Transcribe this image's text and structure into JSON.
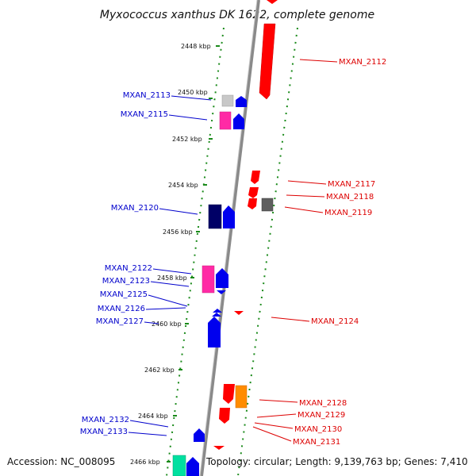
{
  "title": "Myxococcus xanthus DK 1622, complete genome",
  "footer": {
    "accession": "Accession: NC_008095",
    "info": "Topology: circular; Length: 9,139,763 bp; Genes: 7,410"
  },
  "kbp_marks": [
    "2448 kbp",
    "2450 kbp",
    "2452 kbp",
    "2454 kbp",
    "2456 kbp",
    "2458 kbp",
    "2460 kbp",
    "2462 kbp",
    "2464 kbp",
    "2466 kbp"
  ],
  "plus_strand_color": "#ff0000",
  "minus_strand_color": "#0000ee",
  "left_genes": [
    "MXAN_2113",
    "MXAN_2115",
    "MXAN_2120",
    "MXAN_2122",
    "MXAN_2123",
    "MXAN_2125",
    "MXAN_2126",
    "MXAN_2127",
    "MXAN_2132",
    "MXAN_2133"
  ],
  "right_genes": [
    "MXAN_2112",
    "MXAN_2117",
    "MXAN_2118",
    "MXAN_2119",
    "MXAN_2124",
    "MXAN_2128",
    "MXAN_2129",
    "MXAN_2130",
    "MXAN_2131"
  ]
}
